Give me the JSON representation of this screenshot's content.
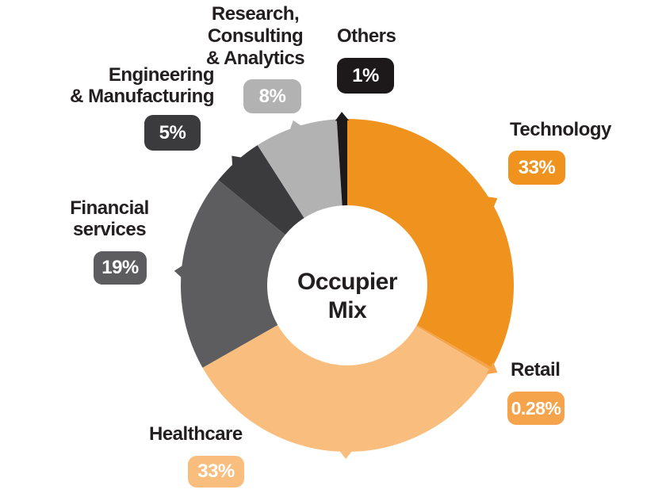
{
  "chart_data": {
    "type": "pie",
    "subtype": "donut",
    "title": "Occupier Mix",
    "center_label": "Occupier Mix",
    "start_angle_deg": 0,
    "direction": "clockwise",
    "legend_position": "callouts-around-donut",
    "segments": [
      {
        "label": "Technology",
        "callout_label": "Technology",
        "value": 33,
        "display": "33%",
        "color": "#F0921E"
      },
      {
        "label": "Retail",
        "callout_label": "Retail",
        "value": 0.28,
        "display": "0.28%",
        "color": "#F6A44C"
      },
      {
        "label": "Healthcare",
        "callout_label": "Healthcare",
        "value": 33,
        "display": "33%",
        "color": "#F9BE7D"
      },
      {
        "label": "Financial services",
        "callout_label": "Financial\nservices",
        "value": 19,
        "display": "19%",
        "color": "#5D5D5F"
      },
      {
        "label": "Engineering & Manufacturing",
        "callout_label": "Engineering\n& Manufacturing",
        "value": 5,
        "display": "5%",
        "color": "#3B3B3D"
      },
      {
        "label": "Research, Consulting & Analytics",
        "callout_label": "Research,\nConsulting\n& Analytics",
        "value": 8,
        "display": "8%",
        "color": "#B2B2B2"
      },
      {
        "label": "Others",
        "callout_label": "Others",
        "value": 1,
        "display": "1%",
        "color": "#1D191A"
      }
    ],
    "colors": {
      "text": "#231F20",
      "badge_text": "#FFFFFF",
      "background": "#FFFFFF"
    }
  }
}
